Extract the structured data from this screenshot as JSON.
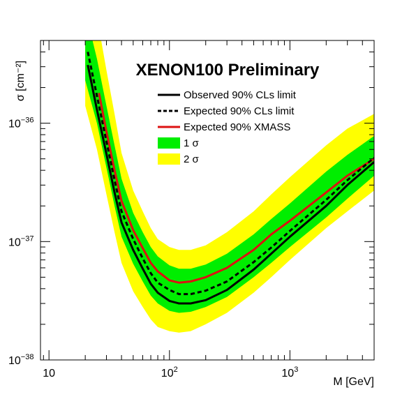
{
  "chart_data": {
    "type": "line",
    "title": "XENON100 Preliminary",
    "xlabel": "M  [GeV]",
    "ylabel": "σ [cm⁻²]",
    "x_scale": "log",
    "y_scale": "log",
    "xlim": [
      8.5,
      5000
    ],
    "ylim": [
      1e-38,
      5e-36
    ],
    "x_ticks": [
      {
        "value": 10,
        "base": "10",
        "exp": ""
      },
      {
        "value": 100,
        "base": "10",
        "exp": "2"
      },
      {
        "value": 1000,
        "base": "10",
        "exp": "3"
      }
    ],
    "y_ticks": [
      {
        "value": 1e-38,
        "base": "10",
        "exp": "−38"
      },
      {
        "value": 1e-37,
        "base": "10",
        "exp": "−37"
      },
      {
        "value": 1e-36,
        "base": "10",
        "exp": "−36"
      }
    ],
    "grid": false,
    "legend_position": "top-right",
    "colors": {
      "observed": "#000000",
      "expected": "#000000",
      "xmass": "#dd1111",
      "band_1sigma": "#00ee00",
      "band_2sigma": "#ffff00"
    },
    "series": [
      {
        "key": "observed",
        "name": "Observed 90% CLs limit",
        "style": "solid",
        "points": [
          [
            21,
            3.1e-36
          ],
          [
            25,
            1.3e-36
          ],
          [
            30,
            5.5e-37
          ],
          [
            35,
            2.6e-37
          ],
          [
            40,
            1.45e-37
          ],
          [
            50,
            8.5e-38
          ],
          [
            60,
            5.9e-38
          ],
          [
            70,
            4.4e-38
          ],
          [
            80,
            3.7e-38
          ],
          [
            100,
            3.15e-38
          ],
          [
            120,
            3e-38
          ],
          [
            150,
            3e-38
          ],
          [
            200,
            3.2e-38
          ],
          [
            300,
            3.9e-38
          ],
          [
            500,
            5.8e-38
          ],
          [
            700,
            7.9e-38
          ],
          [
            1000,
            1.1e-37
          ],
          [
            2000,
            2e-37
          ],
          [
            3000,
            3e-37
          ],
          [
            5000,
            4.7e-37
          ]
        ]
      },
      {
        "key": "expected",
        "name": "Expected 90% CLs limit",
        "style": "dashed",
        "points": [
          [
            21,
            4e-36
          ],
          [
            25,
            1.7e-36
          ],
          [
            30,
            7e-37
          ],
          [
            35,
            3.3e-37
          ],
          [
            40,
            1.8e-37
          ],
          [
            50,
            1.05e-37
          ],
          [
            60,
            7.2e-38
          ],
          [
            70,
            5.4e-38
          ],
          [
            80,
            4.5e-38
          ],
          [
            100,
            3.9e-38
          ],
          [
            120,
            3.6e-38
          ],
          [
            150,
            3.6e-38
          ],
          [
            200,
            3.85e-38
          ],
          [
            300,
            4.6e-38
          ],
          [
            500,
            6.7e-38
          ],
          [
            700,
            8.9e-38
          ],
          [
            1000,
            1.23e-37
          ],
          [
            2000,
            2.25e-37
          ],
          [
            3000,
            3.3e-37
          ],
          [
            5000,
            5.1e-37
          ]
        ]
      },
      {
        "key": "xmass",
        "name": "Expected 90% XMASS",
        "style": "solid",
        "points": [
          [
            26,
            1.8e-36
          ],
          [
            30,
            8.5e-37
          ],
          [
            35,
            4e-37
          ],
          [
            40,
            2.2e-37
          ],
          [
            50,
            1.25e-37
          ],
          [
            60,
            8.8e-38
          ],
          [
            70,
            6.6e-38
          ],
          [
            80,
            5.6e-38
          ],
          [
            100,
            4.7e-38
          ],
          [
            120,
            4.5e-38
          ],
          [
            150,
            4.6e-38
          ],
          [
            200,
            5e-38
          ],
          [
            300,
            6e-38
          ],
          [
            500,
            8.5e-38
          ],
          [
            700,
            1.15e-37
          ],
          [
            1000,
            1.5e-37
          ],
          [
            2000,
            2.6e-37
          ],
          [
            3000,
            3.6e-37
          ],
          [
            5000,
            5e-37
          ]
        ]
      }
    ],
    "bands": [
      {
        "key": "band_2sigma",
        "name": "2 σ",
        "x": [
          20,
          25,
          30,
          35,
          40,
          50,
          60,
          70,
          80,
          100,
          120,
          150,
          200,
          300,
          500,
          700,
          1000,
          2000,
          3000,
          5000
        ],
        "lower": [
          1.4e-36,
          6e-37,
          2.5e-37,
          1.2e-37,
          6.6e-38,
          3.8e-38,
          2.8e-38,
          2.2e-38,
          1.9e-38,
          1.75e-38,
          1.7e-38,
          1.75e-38,
          2e-38,
          2.5e-38,
          3.7e-38,
          5e-38,
          7e-38,
          1.3e-37,
          1.8e-37,
          2.7e-37
        ],
        "upper": [
          2.2e-35,
          8e-36,
          2.8e-36,
          1.2e-36,
          5.6e-37,
          2.7e-37,
          1.8e-37,
          1.3e-37,
          1.05e-37,
          9e-38,
          8.5e-38,
          8.5e-38,
          9.3e-38,
          1.2e-37,
          1.8e-37,
          2.5e-37,
          3.5e-37,
          6.5e-37,
          9e-37,
          1.2e-36
        ]
      },
      {
        "key": "band_1sigma",
        "name": "1 σ",
        "x": [
          20,
          25,
          30,
          35,
          40,
          50,
          60,
          70,
          80,
          100,
          120,
          150,
          200,
          300,
          500,
          700,
          1000,
          2000,
          3000,
          5000
        ],
        "lower": [
          2.3e-36,
          1e-36,
          4.2e-37,
          2e-37,
          1.1e-37,
          6.5e-38,
          4.6e-38,
          3.5e-38,
          3e-38,
          2.6e-38,
          2.5e-38,
          2.55e-38,
          2.8e-38,
          3.4e-38,
          5e-38,
          6.6e-38,
          9e-38,
          1.6e-37,
          2.3e-37,
          3.6e-37
        ],
        "upper": [
          9e-36,
          3.5e-36,
          1.4e-36,
          6.5e-37,
          3.4e-37,
          1.75e-37,
          1.2e-37,
          9e-38,
          7.5e-38,
          6.3e-38,
          5.9e-38,
          5.9e-38,
          6.4e-38,
          7.9e-38,
          1.15e-37,
          1.55e-37,
          2.1e-37,
          3.9e-37,
          5.4e-37,
          7.8e-37
        ]
      }
    ],
    "legend_order": [
      "observed",
      "expected",
      "xmass",
      "band_1sigma",
      "band_2sigma"
    ]
  }
}
